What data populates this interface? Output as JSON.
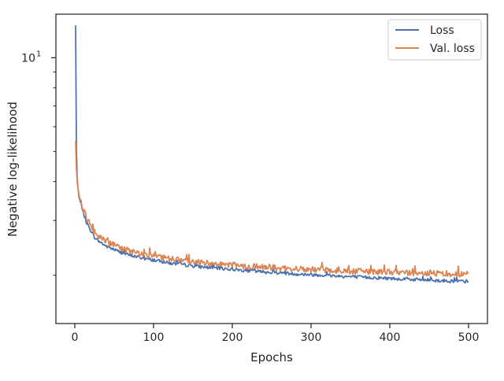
{
  "chart_data": {
    "type": "line",
    "title": "",
    "xlabel": "Epochs",
    "ylabel": "Negative log-likelihood",
    "x_scale": "linear",
    "y_scale": "log",
    "xlim": [
      -24,
      524
    ],
    "ylim": [
      1.4,
      13.8
    ],
    "x_ticks": [
      {
        "value": 0,
        "label": "0"
      },
      {
        "value": 100,
        "label": "100"
      },
      {
        "value": 200,
        "label": "200"
      },
      {
        "value": 300,
        "label": "300"
      },
      {
        "value": 400,
        "label": "400"
      },
      {
        "value": 500,
        "label": "500"
      }
    ],
    "y_ticks": [
      {
        "value": 10,
        "base": "10",
        "exp": "1"
      }
    ],
    "grid": false,
    "legend": {
      "position": "top-right",
      "entries": [
        "Loss",
        "Val. loss"
      ]
    },
    "series": [
      {
        "name": "Loss",
        "color": "#4c72b0",
        "points": [
          [
            1,
            12.7
          ],
          [
            2,
            5.2
          ],
          [
            3,
            4.1
          ],
          [
            5,
            3.6
          ],
          [
            8,
            3.35
          ],
          [
            10,
            3.2
          ],
          [
            15,
            2.95
          ],
          [
            20,
            2.8
          ],
          [
            25,
            2.65
          ],
          [
            30,
            2.58
          ],
          [
            40,
            2.48
          ],
          [
            50,
            2.42
          ],
          [
            60,
            2.36
          ],
          [
            70,
            2.32
          ],
          [
            80,
            2.29
          ],
          [
            90,
            2.26
          ],
          [
            100,
            2.24
          ],
          [
            120,
            2.19
          ],
          [
            140,
            2.16
          ],
          [
            160,
            2.13
          ],
          [
            180,
            2.11
          ],
          [
            200,
            2.09
          ],
          [
            220,
            2.07
          ],
          [
            240,
            2.05
          ],
          [
            260,
            2.04
          ],
          [
            280,
            2.02
          ],
          [
            300,
            2.01
          ],
          [
            320,
            2.0
          ],
          [
            340,
            1.985
          ],
          [
            360,
            1.975
          ],
          [
            380,
            1.965
          ],
          [
            400,
            1.955
          ],
          [
            420,
            1.945
          ],
          [
            440,
            1.935
          ],
          [
            460,
            1.925
          ],
          [
            480,
            1.915
          ],
          [
            500,
            1.91
          ]
        ]
      },
      {
        "name": "Val. loss",
        "color": "#dd8452",
        "points": [
          [
            1,
            5.4
          ],
          [
            2,
            4.4
          ],
          [
            3,
            4.0
          ],
          [
            5,
            3.65
          ],
          [
            8,
            3.4
          ],
          [
            10,
            3.28
          ],
          [
            15,
            3.05
          ],
          [
            20,
            2.9
          ],
          [
            25,
            2.76
          ],
          [
            30,
            2.67
          ],
          [
            40,
            2.56
          ],
          [
            50,
            2.5
          ],
          [
            60,
            2.44
          ],
          [
            70,
            2.39
          ],
          [
            80,
            2.35
          ],
          [
            90,
            2.32
          ],
          [
            100,
            2.3
          ],
          [
            120,
            2.26
          ],
          [
            140,
            2.23
          ],
          [
            160,
            2.2
          ],
          [
            180,
            2.18
          ],
          [
            200,
            2.16
          ],
          [
            220,
            2.14
          ],
          [
            240,
            2.13
          ],
          [
            260,
            2.11
          ],
          [
            280,
            2.1
          ],
          [
            300,
            2.09
          ],
          [
            320,
            2.08
          ],
          [
            340,
            2.07
          ],
          [
            360,
            2.06
          ],
          [
            380,
            2.05
          ],
          [
            400,
            2.045
          ],
          [
            420,
            2.04
          ],
          [
            440,
            2.035
          ],
          [
            460,
            2.03
          ],
          [
            480,
            2.025
          ],
          [
            500,
            2.02
          ]
        ]
      }
    ]
  }
}
